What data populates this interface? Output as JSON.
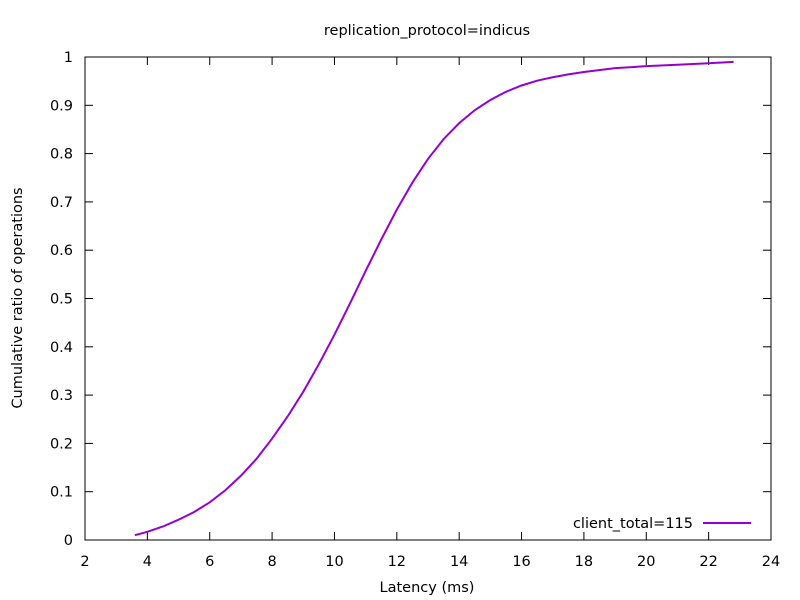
{
  "chart_data": {
    "type": "line",
    "title": "replication_protocol=indicus",
    "xlabel": "Latency (ms)",
    "ylabel": "Cumulative ratio of operations",
    "xlim": [
      2,
      24
    ],
    "ylim": [
      0,
      1
    ],
    "xticks": [
      "2",
      "4",
      "6",
      "8",
      "10",
      "12",
      "14",
      "16",
      "18",
      "20",
      "22",
      "24"
    ],
    "yticks": [
      "0",
      "0.1",
      "0.2",
      "0.3",
      "0.4",
      "0.5",
      "0.6",
      "0.7",
      "0.8",
      "0.9",
      "1"
    ],
    "grid": false,
    "legend_position": "bottom-right",
    "series": [
      {
        "name": "client_total=115",
        "color": "#9400d3",
        "x": [
          3.6,
          4.0,
          4.5,
          5.0,
          5.5,
          6.0,
          6.5,
          7.0,
          7.5,
          8.0,
          8.5,
          9.0,
          9.5,
          10.0,
          10.5,
          11.0,
          11.5,
          12.0,
          12.5,
          13.0,
          13.5,
          14.0,
          14.5,
          15.0,
          15.5,
          16.0,
          16.5,
          17.0,
          17.5,
          18.0,
          19.0,
          20.0,
          21.0,
          22.0,
          22.8
        ],
        "y": [
          0.01,
          0.017,
          0.028,
          0.042,
          0.058,
          0.078,
          0.103,
          0.133,
          0.168,
          0.21,
          0.256,
          0.307,
          0.364,
          0.425,
          0.49,
          0.557,
          0.622,
          0.684,
          0.74,
          0.789,
          0.83,
          0.863,
          0.89,
          0.911,
          0.928,
          0.941,
          0.951,
          0.958,
          0.964,
          0.969,
          0.977,
          0.981,
          0.984,
          0.987,
          0.99
        ]
      }
    ]
  }
}
